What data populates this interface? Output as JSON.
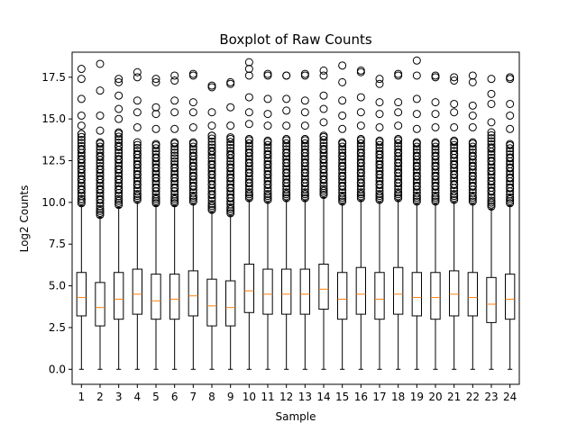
{
  "chart_data": {
    "type": "boxplot",
    "title": "Boxplot of Raw Counts",
    "xlabel": "Sample",
    "ylabel": "Log2 Counts",
    "ylim": [
      -0.9,
      19.0
    ],
    "yticks": [
      "0.0",
      "2.5",
      "5.0",
      "7.5",
      "10.0",
      "12.5",
      "15.0",
      "17.5"
    ],
    "ytick_values": [
      0,
      2.5,
      5,
      7.5,
      10,
      12.5,
      15,
      17.5
    ],
    "categories": [
      "1",
      "2",
      "3",
      "4",
      "5",
      "6",
      "7",
      "8",
      "9",
      "10",
      "11",
      "12",
      "13",
      "14",
      "15",
      "16",
      "17",
      "18",
      "19",
      "20",
      "21",
      "22",
      "23",
      "24"
    ],
    "box_color": "#000000",
    "median_color": "#ff7f0e",
    "boxes": [
      {
        "min": 0,
        "q1": 3.2,
        "median": 4.3,
        "q3": 5.8,
        "max": 9.8,
        "outliers": [
          10.2,
          10.8,
          11.4,
          12.0,
          12.6,
          13.2,
          14.1,
          14.6,
          15.2,
          16.2,
          17.4,
          18.0
        ]
      },
      {
        "min": 0,
        "q1": 2.6,
        "median": 3.7,
        "q3": 5.2,
        "max": 9.1,
        "outliers": [
          9.6,
          10.2,
          10.8,
          11.4,
          12.0,
          12.8,
          13.6,
          14.3,
          15.2,
          16.7,
          18.3
        ]
      },
      {
        "min": 0,
        "q1": 3.0,
        "median": 4.2,
        "q3": 5.8,
        "max": 9.7,
        "outliers": [
          10.2,
          10.8,
          11.4,
          12.0,
          12.6,
          13.4,
          14.2,
          15.0,
          15.6,
          16.4,
          17.2,
          17.4
        ]
      },
      {
        "min": 0,
        "q1": 3.3,
        "median": 4.5,
        "q3": 6.0,
        "max": 10.0,
        "outliers": [
          10.5,
          11.1,
          11.7,
          12.3,
          12.9,
          13.6,
          14.5,
          15.4,
          16.1,
          17.5,
          17.8
        ]
      },
      {
        "min": 0,
        "q1": 3.0,
        "median": 4.1,
        "q3": 5.7,
        "max": 9.8,
        "outliers": [
          10.3,
          10.9,
          11.5,
          12.1,
          12.7,
          13.5,
          14.4,
          15.3,
          15.7,
          17.2,
          17.4
        ]
      },
      {
        "min": 0,
        "q1": 3.0,
        "median": 4.2,
        "q3": 5.7,
        "max": 9.8,
        "outliers": [
          10.3,
          10.9,
          11.5,
          12.1,
          12.8,
          13.6,
          14.4,
          15.4,
          16.1,
          17.3,
          17.6
        ]
      },
      {
        "min": 0,
        "q1": 3.2,
        "median": 4.4,
        "q3": 5.9,
        "max": 9.9,
        "outliers": [
          10.4,
          11.0,
          11.6,
          12.2,
          12.8,
          13.6,
          14.5,
          15.4,
          16.0,
          17.6,
          17.7
        ]
      },
      {
        "min": 0,
        "q1": 2.6,
        "median": 3.8,
        "q3": 5.4,
        "max": 9.4,
        "outliers": [
          9.9,
          10.5,
          11.1,
          11.7,
          12.3,
          13.1,
          14.0,
          14.6,
          15.4,
          16.9,
          17.0
        ]
      },
      {
        "min": 0,
        "q1": 2.6,
        "median": 3.7,
        "q3": 5.3,
        "max": 9.2,
        "outliers": [
          9.7,
          10.3,
          10.9,
          11.5,
          12.1,
          12.9,
          13.9,
          14.6,
          15.7,
          17.1,
          17.2
        ]
      },
      {
        "min": 0,
        "q1": 3.4,
        "median": 4.7,
        "q3": 6.3,
        "max": 10.1,
        "outliers": [
          10.6,
          11.2,
          11.8,
          12.4,
          13.0,
          13.8,
          14.7,
          15.4,
          16.3,
          17.6,
          18.0,
          18.4
        ]
      },
      {
        "min": 0,
        "q1": 3.3,
        "median": 4.5,
        "q3": 6.0,
        "max": 10.0,
        "outliers": [
          10.5,
          11.1,
          11.7,
          12.3,
          12.9,
          13.7,
          14.6,
          15.3,
          16.2,
          17.6,
          17.7
        ]
      },
      {
        "min": 0,
        "q1": 3.3,
        "median": 4.5,
        "q3": 6.0,
        "max": 10.1,
        "outliers": [
          10.6,
          11.2,
          11.8,
          12.4,
          13.0,
          13.8,
          14.6,
          15.5,
          16.2,
          17.6,
          17.6
        ]
      },
      {
        "min": 0,
        "q1": 3.3,
        "median": 4.5,
        "q3": 6.0,
        "max": 10.1,
        "outliers": [
          10.6,
          11.2,
          11.8,
          12.4,
          13.0,
          13.8,
          14.6,
          15.4,
          16.1,
          17.6,
          17.7
        ]
      },
      {
        "min": 0,
        "q1": 3.6,
        "median": 4.8,
        "q3": 6.3,
        "max": 10.3,
        "outliers": [
          10.8,
          11.4,
          12.0,
          12.6,
          13.2,
          14.0,
          14.8,
          15.6,
          16.4,
          17.6,
          17.9
        ]
      },
      {
        "min": 0,
        "q1": 3.0,
        "median": 4.2,
        "q3": 5.8,
        "max": 9.9,
        "outliers": [
          10.4,
          11.0,
          11.6,
          12.2,
          12.8,
          13.6,
          14.4,
          15.2,
          16.1,
          17.2,
          18.2
        ]
      },
      {
        "min": 0,
        "q1": 3.3,
        "median": 4.5,
        "q3": 6.1,
        "max": 10.1,
        "outliers": [
          10.6,
          11.2,
          11.8,
          12.4,
          13.0,
          13.8,
          14.6,
          15.4,
          16.3,
          17.8,
          17.9
        ]
      },
      {
        "min": 0,
        "q1": 3.0,
        "median": 4.2,
        "q3": 5.8,
        "max": 10.0,
        "outliers": [
          10.5,
          11.1,
          11.7,
          12.3,
          12.9,
          13.7,
          14.5,
          15.3,
          16.0,
          17.1,
          17.4
        ]
      },
      {
        "min": 0,
        "q1": 3.3,
        "median": 4.5,
        "q3": 6.1,
        "max": 10.1,
        "outliers": [
          10.6,
          11.2,
          11.8,
          12.4,
          13.0,
          13.8,
          14.6,
          15.4,
          16.0,
          17.6,
          17.7
        ]
      },
      {
        "min": 0,
        "q1": 3.2,
        "median": 4.3,
        "q3": 5.8,
        "max": 9.9,
        "outliers": [
          10.4,
          11.0,
          11.6,
          12.2,
          12.8,
          13.6,
          14.4,
          15.3,
          16.2,
          17.6,
          18.5
        ]
      },
      {
        "min": 0,
        "q1": 3.0,
        "median": 4.3,
        "q3": 5.8,
        "max": 9.9,
        "outliers": [
          10.4,
          11.0,
          11.6,
          12.2,
          12.8,
          13.6,
          14.5,
          15.3,
          16.0,
          17.5,
          17.6
        ]
      },
      {
        "min": 0,
        "q1": 3.2,
        "median": 4.5,
        "q3": 5.9,
        "max": 10.0,
        "outliers": [
          10.5,
          11.1,
          11.7,
          12.3,
          12.9,
          13.7,
          14.5,
          15.4,
          15.9,
          17.3,
          17.5
        ]
      },
      {
        "min": 0,
        "q1": 3.2,
        "median": 4.3,
        "q3": 5.8,
        "max": 9.9,
        "outliers": [
          10.4,
          11.0,
          11.6,
          12.2,
          12.8,
          13.6,
          14.5,
          15.2,
          15.8,
          17.2,
          17.6
        ]
      },
      {
        "min": 0,
        "q1": 2.8,
        "median": 3.9,
        "q3": 5.5,
        "max": 9.6,
        "outliers": [
          10.1,
          10.7,
          11.3,
          11.9,
          12.5,
          13.3,
          14.2,
          14.8,
          15.9,
          16.5,
          17.4
        ]
      },
      {
        "min": 0,
        "q1": 3.0,
        "median": 4.2,
        "q3": 5.7,
        "max": 9.8,
        "outliers": [
          10.3,
          10.9,
          11.5,
          12.1,
          12.7,
          13.5,
          14.4,
          15.2,
          15.9,
          17.4,
          17.5
        ]
      }
    ]
  }
}
